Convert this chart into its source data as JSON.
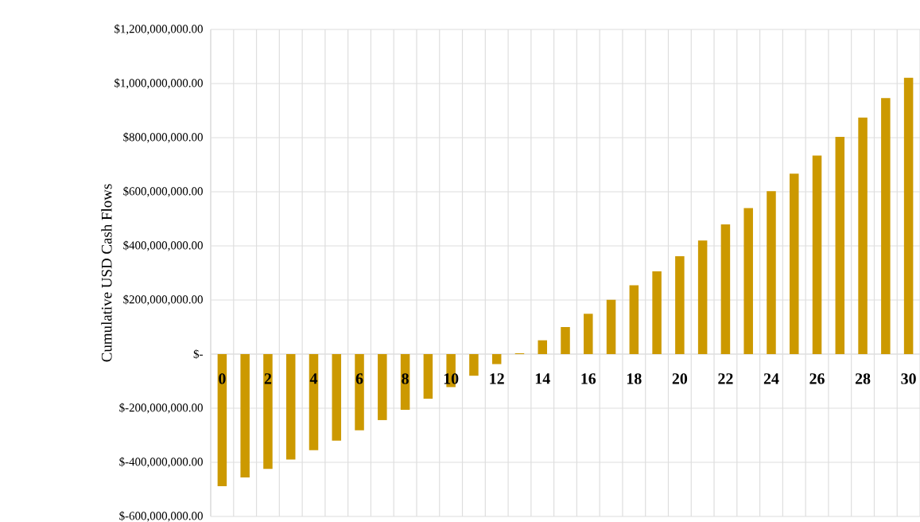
{
  "chart_data": {
    "type": "bar",
    "ylabel": "Cumulative USD Cash Flows",
    "categories": [
      "0",
      null,
      "2",
      null,
      "4",
      null,
      "6",
      null,
      "8",
      null,
      "10",
      null,
      "12",
      null,
      "14",
      null,
      "16",
      null,
      "18",
      null,
      "20",
      null,
      "22",
      null,
      "24",
      null,
      "26",
      null,
      "28",
      null,
      "30"
    ],
    "values": [
      -488000000,
      -456000000,
      -424000000,
      -390000000,
      -355000000,
      -320000000,
      -282000000,
      -244000000,
      -206000000,
      -165000000,
      -122000000,
      -80000000,
      -37000000,
      3000000,
      51000000,
      100000000,
      149000000,
      201000000,
      254000000,
      306000000,
      362000000,
      420000000,
      479000000,
      540000000,
      602000000,
      667000000,
      734000000,
      803000000,
      874000000,
      946000000,
      1021000000
    ],
    "color": "#cc9900",
    "ylim": [
      -600000000,
      1200000000
    ],
    "yticks": [
      {
        "value": -600000000,
        "label": "$-600,000,000.00"
      },
      {
        "value": -400000000,
        "label": "$-400,000,000.00"
      },
      {
        "value": -200000000,
        "label": "$-200,000,000.00"
      },
      {
        "value": 0,
        "label": "$-"
      },
      {
        "value": 200000000,
        "label": "$200,000,000.00"
      },
      {
        "value": 400000000,
        "label": "$400,000,000.00"
      },
      {
        "value": 600000000,
        "label": "$600,000,000.00"
      },
      {
        "value": 800000000,
        "label": "$800,000,000.00"
      },
      {
        "value": 1000000000,
        "label": "$1,000,000,000.00"
      },
      {
        "value": 1200000000,
        "label": "$1,200,000,000.00"
      }
    ],
    "grid": true
  }
}
